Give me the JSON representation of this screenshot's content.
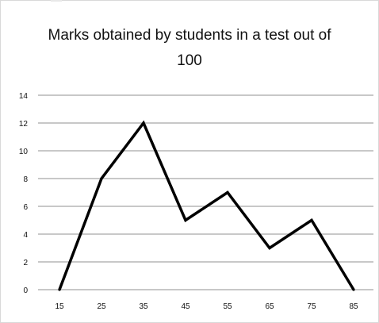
{
  "chart_data": {
    "type": "line",
    "title_lines": [
      "Marks obtained by students in a test out of",
      "100"
    ],
    "xlabel": "",
    "ylabel": "",
    "x": [
      15,
      25,
      35,
      45,
      55,
      65,
      75,
      85
    ],
    "values": [
      0,
      8,
      12,
      5,
      7,
      3,
      5,
      0
    ],
    "ylim": [
      0,
      14
    ],
    "yticks": [
      "0",
      "2",
      "4",
      "6",
      "8",
      "10",
      "12",
      "14"
    ],
    "xticks": [
      "15",
      "25",
      "35",
      "45",
      "55",
      "65",
      "75",
      "85"
    ],
    "grid": true,
    "legend": "none",
    "line_color": "#000000",
    "grid_color": "#a6a6a6"
  }
}
